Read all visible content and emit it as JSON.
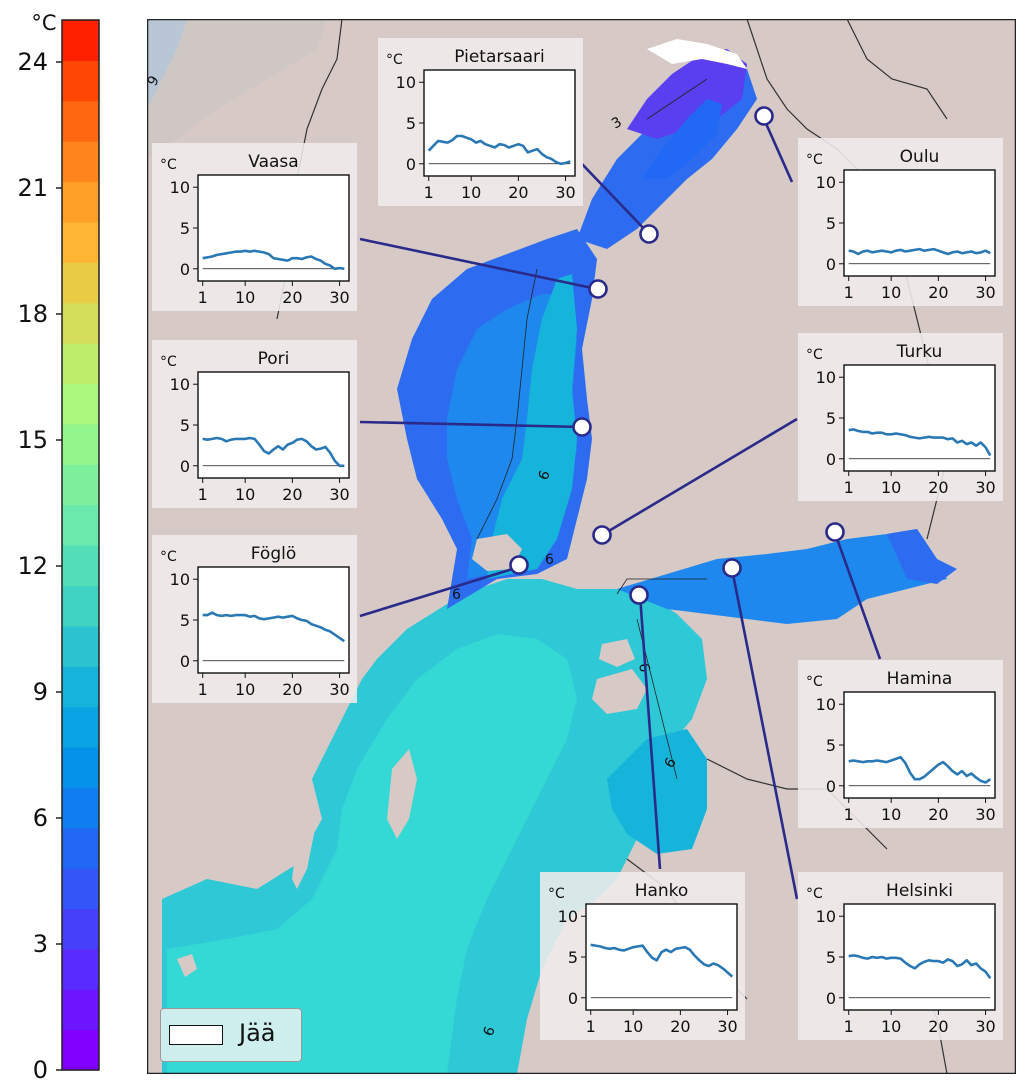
{
  "colorbar": {
    "unit": "°C",
    "min": 0,
    "max": 25,
    "ticks": [
      0,
      3,
      6,
      9,
      12,
      15,
      18,
      21,
      24
    ],
    "colors": [
      "#8000ff",
      "#6c15fe",
      "#5a2bfd",
      "#4740fb",
      "#3455f8",
      "#2169f4",
      "#0f7ef0",
      "#0592ea",
      "#08a4e3",
      "#16b4da",
      "#2bc4d0",
      "#40d3c4",
      "#54deb8",
      "#69e9ab",
      "#7ef09d",
      "#93f68d",
      "#a9f87d",
      "#beec6b",
      "#d3dd59",
      "#e8cc46",
      "#fcb634",
      "#ffa128",
      "#ff851c",
      "#ff6810",
      "#ff4805",
      "#ff2000"
    ]
  },
  "map": {
    "sea_colors": {
      "cold": "#5a3ff0",
      "cool": "#2d6cf0",
      "mid": "#1e88ee",
      "warm": "#16b4da",
      "warmer": "#2ec8d6",
      "warmest": "#34d8d4"
    },
    "land_color": "#d6c9c6",
    "contour_labels": [
      "3",
      "6",
      "6",
      "6",
      "6",
      "6",
      "6",
      "6",
      "9"
    ],
    "legend_label": "Jää"
  },
  "stations": [
    {
      "name": "Pietarsaari",
      "values": [
        1.6,
        2.2,
        2.8,
        2.7,
        2.6,
        2.9,
        3.4,
        3.4,
        3.2,
        3.0,
        2.6,
        2.8,
        2.4,
        2.2,
        2.0,
        2.4,
        2.3,
        2.0,
        2.2,
        2.4,
        2.2,
        1.4,
        1.6,
        1.8,
        1.2,
        0.8,
        0.6,
        0.2,
        0.0,
        0.1,
        0.3
      ]
    },
    {
      "name": "Oulu",
      "values": [
        1.6,
        1.5,
        1.2,
        1.5,
        1.6,
        1.4,
        1.5,
        1.6,
        1.5,
        1.4,
        1.6,
        1.7,
        1.5,
        1.6,
        1.7,
        1.8,
        1.6,
        1.7,
        1.8,
        1.6,
        1.4,
        1.2,
        1.4,
        1.5,
        1.3,
        1.4,
        1.5,
        1.3,
        1.4,
        1.6,
        1.3
      ]
    },
    {
      "name": "Vaasa",
      "values": [
        1.3,
        1.4,
        1.5,
        1.7,
        1.8,
        1.9,
        2.0,
        2.1,
        2.1,
        2.2,
        2.1,
        2.2,
        2.1,
        2.0,
        1.8,
        1.3,
        1.2,
        1.1,
        1.0,
        1.3,
        1.3,
        1.2,
        1.4,
        1.5,
        1.2,
        1.0,
        0.6,
        0.4,
        0.0,
        0.1,
        0.0
      ]
    },
    {
      "name": "Pori",
      "values": [
        3.3,
        3.2,
        3.3,
        3.4,
        3.3,
        3.0,
        3.2,
        3.3,
        3.3,
        3.3,
        3.4,
        3.3,
        2.6,
        1.8,
        1.5,
        2.0,
        2.4,
        2.0,
        2.6,
        2.8,
        3.2,
        3.3,
        3.0,
        2.4,
        2.0,
        2.1,
        2.3,
        1.6,
        0.6,
        0.0,
        0.0
      ]
    },
    {
      "name": "Turku",
      "values": [
        3.5,
        3.6,
        3.4,
        3.3,
        3.3,
        3.1,
        3.2,
        3.2,
        3.0,
        3.0,
        3.1,
        3.0,
        2.9,
        2.7,
        2.6,
        2.5,
        2.6,
        2.7,
        2.6,
        2.6,
        2.6,
        2.4,
        2.5,
        2.0,
        2.2,
        1.8,
        2.0,
        1.6,
        2.0,
        1.4,
        0.4
      ]
    },
    {
      "name": "Föglö",
      "values": [
        5.6,
        5.6,
        5.9,
        5.6,
        5.5,
        5.6,
        5.5,
        5.6,
        5.6,
        5.6,
        5.4,
        5.5,
        5.2,
        5.1,
        5.2,
        5.3,
        5.4,
        5.3,
        5.4,
        5.5,
        5.2,
        5.0,
        4.9,
        4.5,
        4.3,
        4.1,
        3.8,
        3.6,
        3.2,
        2.8,
        2.4
      ]
    },
    {
      "name": "Hamina",
      "values": [
        3.0,
        3.1,
        3.0,
        2.9,
        3.0,
        3.0,
        3.1,
        3.0,
        2.9,
        3.1,
        3.3,
        3.5,
        2.8,
        1.6,
        0.8,
        0.8,
        1.1,
        1.6,
        2.1,
        2.6,
        2.9,
        2.4,
        1.8,
        1.4,
        1.8,
        1.2,
        1.5,
        1.0,
        0.6,
        0.4,
        0.8
      ]
    },
    {
      "name": "Hanko",
      "values": [
        6.5,
        6.4,
        6.3,
        6.1,
        6.0,
        6.1,
        5.9,
        5.8,
        6.0,
        6.2,
        6.3,
        6.4,
        5.6,
        4.9,
        4.6,
        5.6,
        5.9,
        5.6,
        6.0,
        6.1,
        6.2,
        5.9,
        5.2,
        4.6,
        4.1,
        3.9,
        4.2,
        4.0,
        3.6,
        3.1,
        2.6
      ]
    },
    {
      "name": "Helsinki",
      "values": [
        5.1,
        5.2,
        5.1,
        4.9,
        4.8,
        5.0,
        4.9,
        5.0,
        4.8,
        4.9,
        4.9,
        4.8,
        4.3,
        3.9,
        3.6,
        4.1,
        4.4,
        4.6,
        4.5,
        4.5,
        4.3,
        4.7,
        4.5,
        3.9,
        4.1,
        4.6,
        4.0,
        4.2,
        3.6,
        3.2,
        2.4
      ]
    }
  ],
  "inset_axes": {
    "unit": "°C",
    "yticks": [
      0,
      5,
      10
    ],
    "xticks": [
      1,
      10,
      20,
      30
    ],
    "ylim": [
      -1.5,
      11.5
    ],
    "xlim": [
      0,
      32
    ]
  }
}
